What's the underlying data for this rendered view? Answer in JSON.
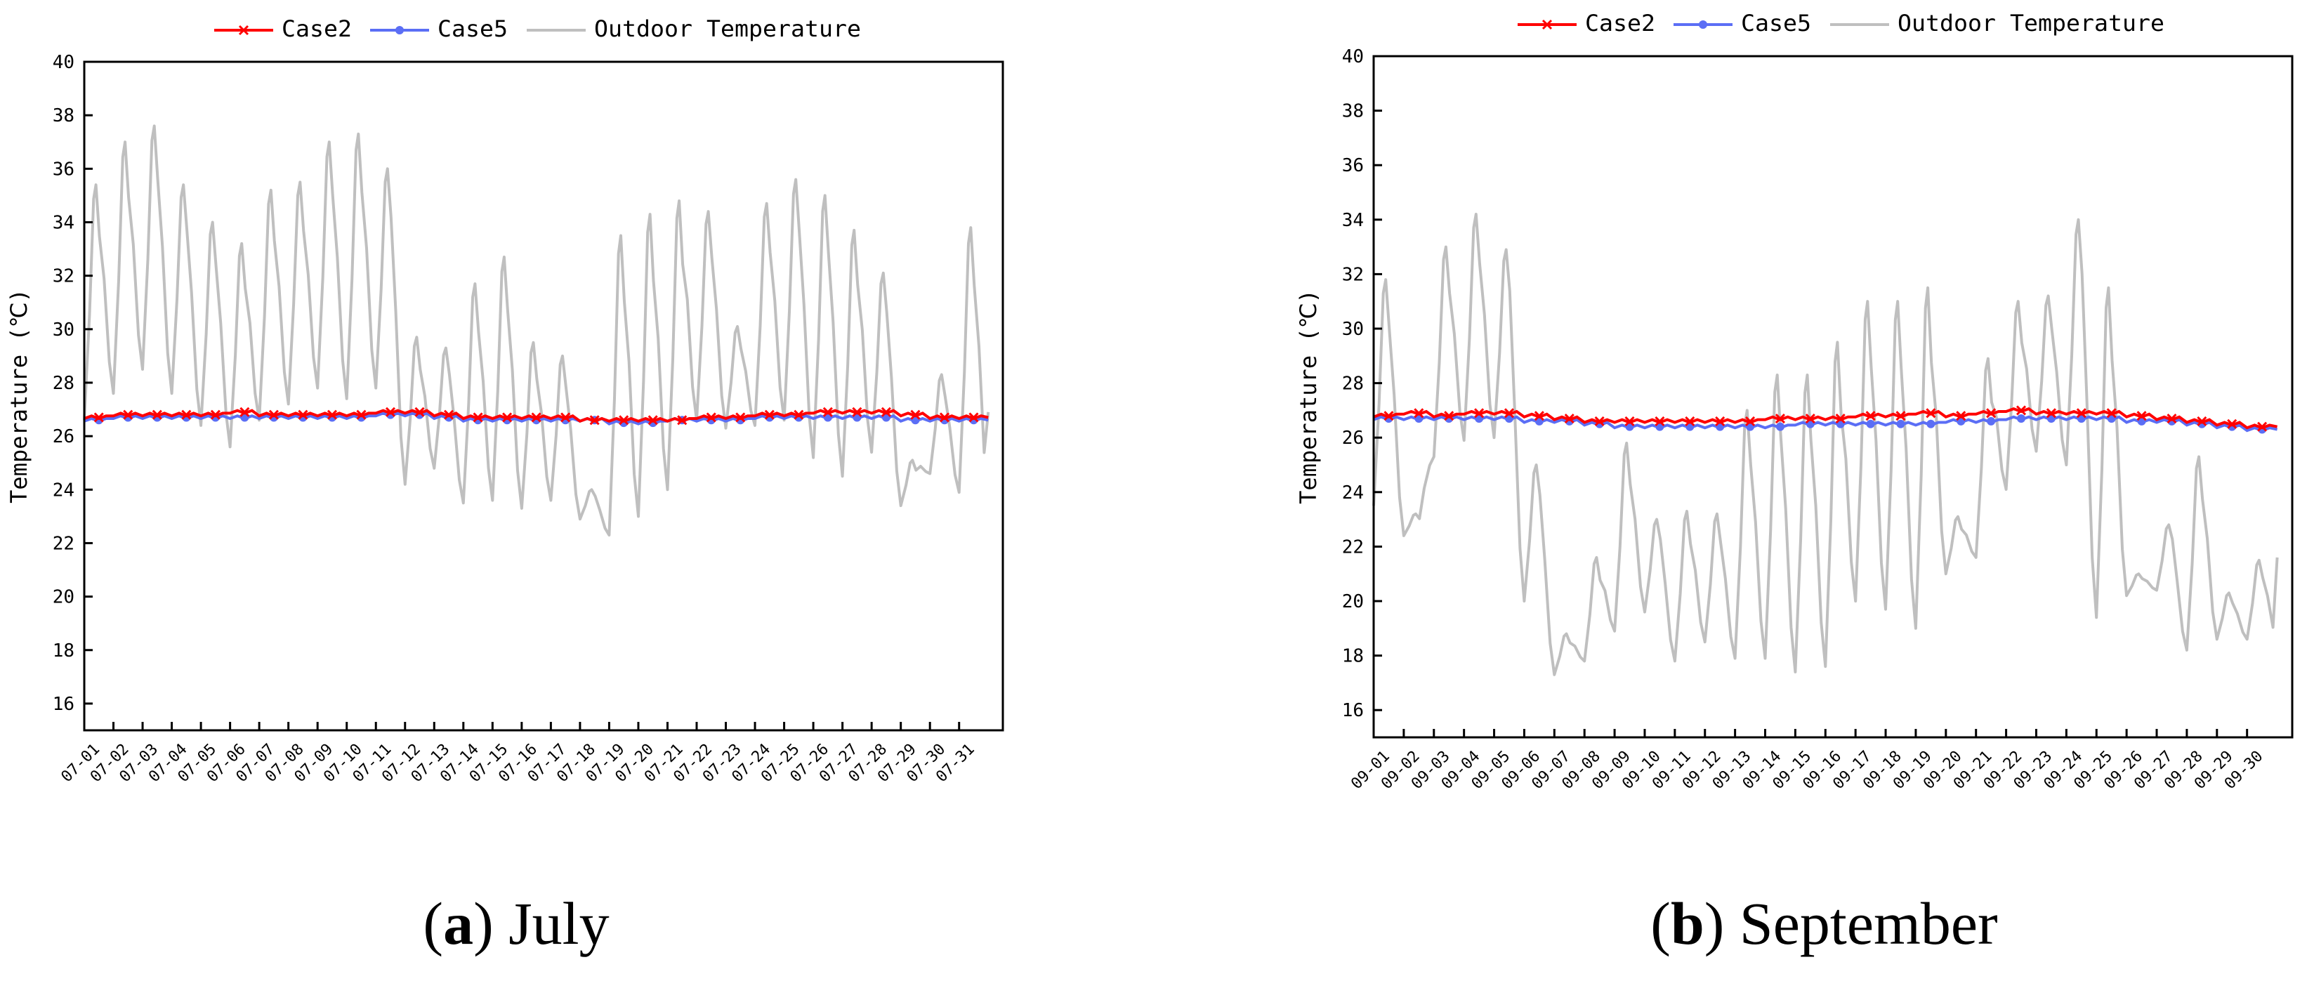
{
  "chart_data": [
    {
      "type": "line",
      "panel": "a",
      "ylabel": "Temperature (℃)",
      "ylim": [
        15,
        40
      ],
      "yticks": [
        16,
        18,
        20,
        22,
        24,
        26,
        28,
        30,
        32,
        34,
        36,
        38,
        40
      ],
      "categories": [
        "07-01",
        "07-02",
        "07-03",
        "07-04",
        "07-05",
        "07-06",
        "07-07",
        "07-08",
        "07-09",
        "07-10",
        "07-11",
        "07-12",
        "07-13",
        "07-14",
        "07-15",
        "07-16",
        "07-17",
        "07-18",
        "07-19",
        "07-20",
        "07-21",
        "07-22",
        "07-23",
        "07-24",
        "07-25",
        "07-26",
        "07-27",
        "07-28",
        "07-29",
        "07-30",
        "07-31"
      ],
      "legend": [
        "Case2",
        "Case5",
        "Outdoor Temperature"
      ],
      "outdoor_daily_min": [
        26.6,
        27.6,
        28.5,
        27.6,
        26.4,
        25.6,
        26.6,
        27.2,
        27.8,
        27.4,
        27.8,
        24.2,
        24.8,
        23.5,
        23.6,
        23.3,
        23.6,
        22.9,
        22.3,
        23.0,
        24.0,
        26.6,
        26.3,
        26.4,
        26.6,
        25.2,
        24.5,
        25.4,
        23.4,
        24.6,
        23.9
      ],
      "outdoor_daily_max": [
        35.4,
        37.0,
        37.6,
        35.4,
        34.0,
        33.2,
        35.2,
        35.5,
        37.0,
        37.3,
        36.0,
        29.7,
        29.3,
        31.7,
        32.7,
        29.5,
        29.0,
        24.0,
        33.5,
        34.3,
        34.8,
        34.4,
        30.1,
        34.7,
        35.6,
        35.0,
        33.7,
        32.1,
        25.1,
        28.3,
        33.8
      ],
      "series": [
        {
          "name": "Case2",
          "color": "#ff0000",
          "marker": "x",
          "values": [
            26.7,
            26.8,
            26.8,
            26.8,
            26.8,
            26.9,
            26.8,
            26.8,
            26.8,
            26.8,
            26.9,
            26.9,
            26.8,
            26.7,
            26.7,
            26.7,
            26.7,
            26.6,
            26.6,
            26.6,
            26.6,
            26.7,
            26.7,
            26.8,
            26.8,
            26.9,
            26.9,
            26.9,
            26.8,
            26.7,
            26.7
          ]
        },
        {
          "name": "Case5",
          "color": "#5b6ef5",
          "marker": "o",
          "values": [
            26.6,
            26.7,
            26.7,
            26.7,
            26.7,
            26.7,
            26.7,
            26.7,
            26.7,
            26.7,
            26.8,
            26.8,
            26.7,
            26.6,
            26.6,
            26.6,
            26.6,
            26.6,
            26.5,
            26.5,
            26.6,
            26.6,
            26.6,
            26.7,
            26.7,
            26.7,
            26.7,
            26.7,
            26.6,
            26.6,
            26.6
          ]
        },
        {
          "name": "Outdoor Temperature",
          "color": "#bfbfbf",
          "marker": "none"
        }
      ]
    },
    {
      "type": "line",
      "panel": "b",
      "ylabel": "Temperature (℃)",
      "ylim": [
        15,
        40
      ],
      "yticks": [
        16,
        18,
        20,
        22,
        24,
        26,
        28,
        30,
        32,
        34,
        36,
        38,
        40
      ],
      "categories": [
        "09-01",
        "09-02",
        "09-03",
        "09-04",
        "09-05",
        "09-06",
        "09-07",
        "09-08",
        "09-09",
        "09-10",
        "09-11",
        "09-12",
        "09-13",
        "09-14",
        "09-15",
        "09-16",
        "09-17",
        "09-18",
        "09-19",
        "09-20",
        "09-21",
        "09-22",
        "09-23",
        "09-24",
        "09-25",
        "09-26",
        "09-27",
        "09-28",
        "09-29",
        "09-30"
      ],
      "legend": [
        "Case2",
        "Case5",
        "Outdoor Temperature"
      ],
      "outdoor_daily_min": [
        23.5,
        22.4,
        25.3,
        25.9,
        26.0,
        20.0,
        17.3,
        17.8,
        18.9,
        19.6,
        17.8,
        18.5,
        17.9,
        17.9,
        17.4,
        17.6,
        20.0,
        19.7,
        19.0,
        21.0,
        21.6,
        24.1,
        25.5,
        25.0,
        19.4,
        20.2,
        20.4,
        18.2,
        18.6,
        18.6
      ],
      "outdoor_daily_max": [
        31.8,
        23.2,
        33.0,
        34.2,
        32.9,
        25.0,
        18.8,
        21.6,
        25.8,
        23.0,
        23.3,
        23.2,
        27.0,
        28.3,
        28.3,
        29.5,
        31.0,
        31.0,
        31.5,
        23.1,
        28.9,
        31.0,
        31.2,
        34.0,
        31.5,
        21.0,
        22.8,
        25.3,
        20.3,
        21.5
      ],
      "series": [
        {
          "name": "Case2",
          "color": "#ff0000",
          "marker": "x",
          "values": [
            26.8,
            26.9,
            26.8,
            26.9,
            26.9,
            26.8,
            26.7,
            26.6,
            26.6,
            26.6,
            26.6,
            26.6,
            26.6,
            26.7,
            26.7,
            26.7,
            26.8,
            26.8,
            26.9,
            26.8,
            26.9,
            27.0,
            26.9,
            26.9,
            26.9,
            26.8,
            26.7,
            26.6,
            26.5,
            26.4
          ]
        },
        {
          "name": "Case5",
          "color": "#5b6ef5",
          "marker": "o",
          "values": [
            26.7,
            26.7,
            26.7,
            26.7,
            26.7,
            26.6,
            26.6,
            26.5,
            26.4,
            26.4,
            26.4,
            26.4,
            26.4,
            26.4,
            26.5,
            26.5,
            26.5,
            26.5,
            26.5,
            26.6,
            26.6,
            26.7,
            26.7,
            26.7,
            26.7,
            26.6,
            26.6,
            26.5,
            26.4,
            26.3
          ]
        },
        {
          "name": "Outdoor Temperature",
          "color": "#bfbfbf",
          "marker": "none"
        }
      ]
    }
  ],
  "captions": {
    "a": {
      "letter": "a",
      "text": "July"
    },
    "b": {
      "letter": "b",
      "text": "September"
    }
  }
}
